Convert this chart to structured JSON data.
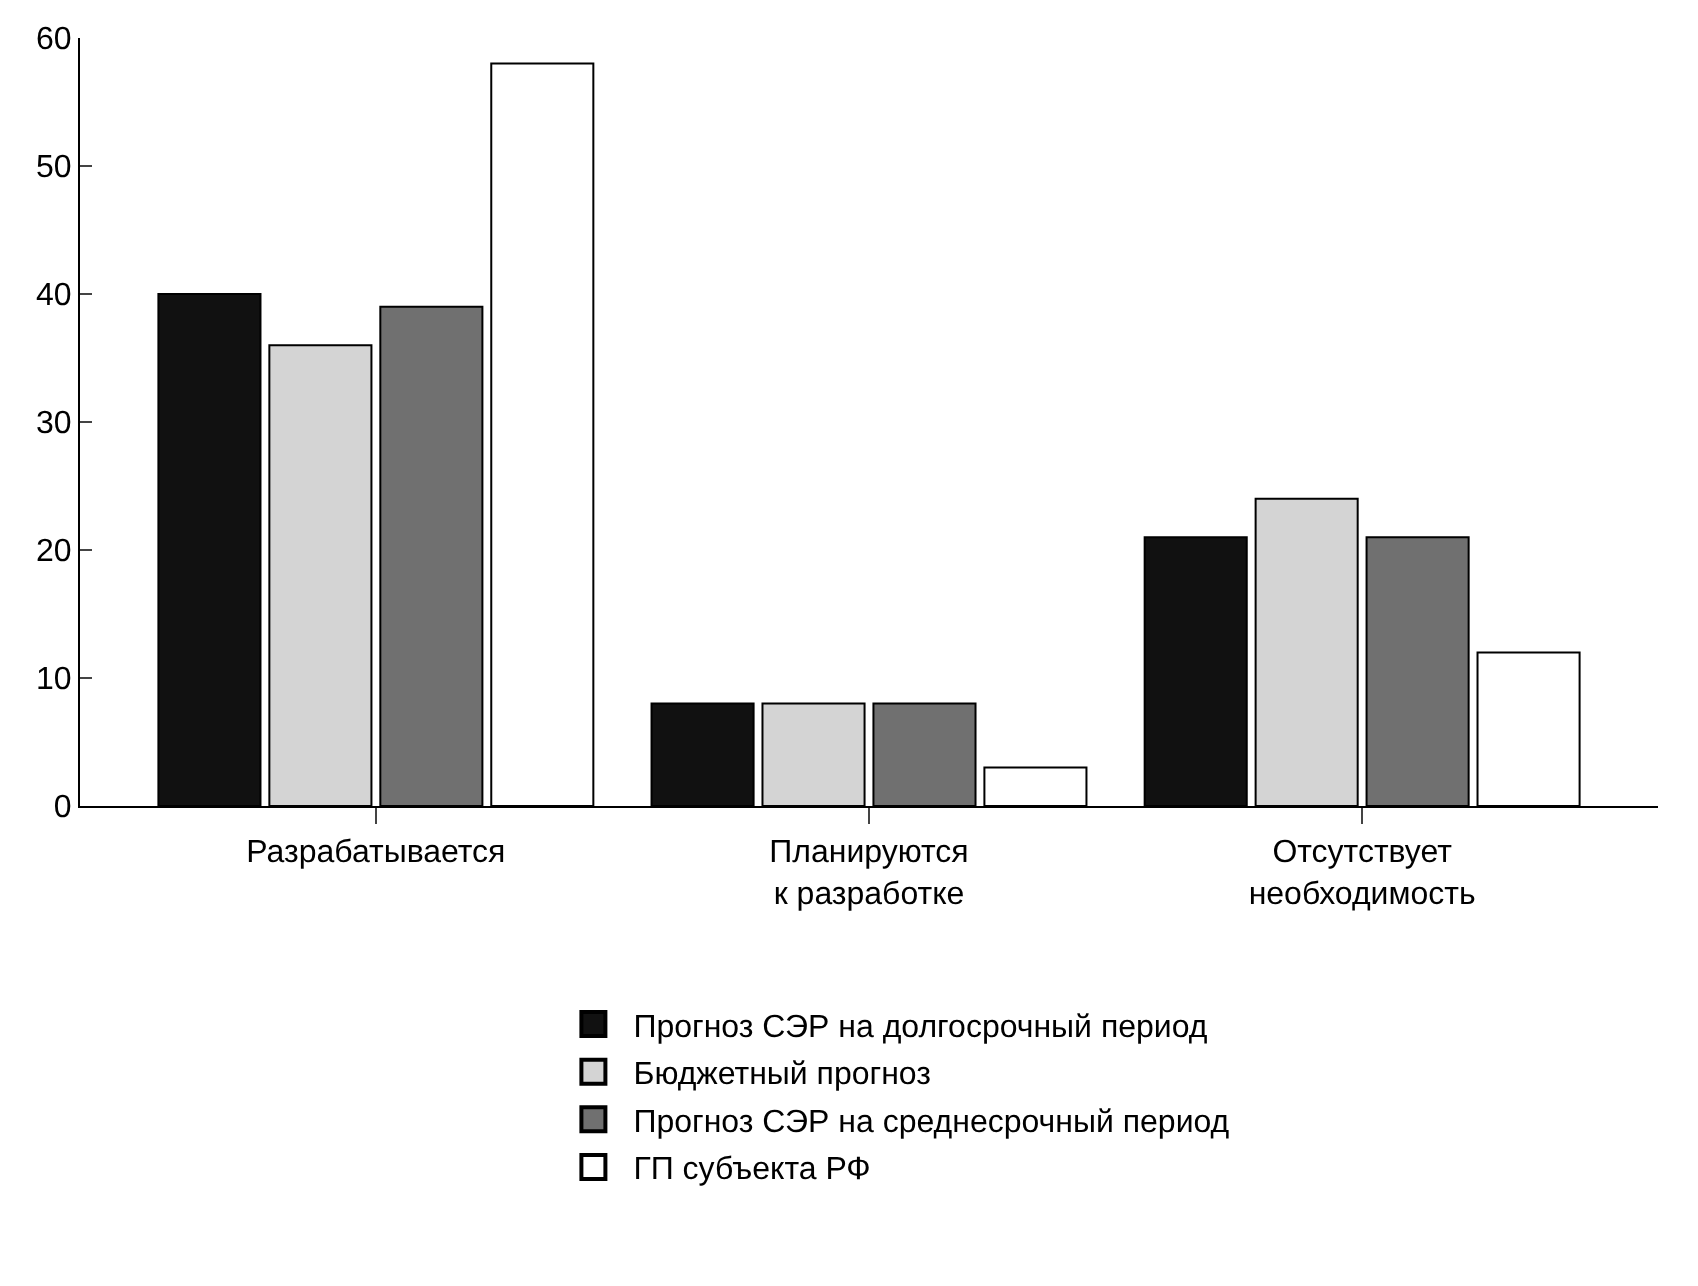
{
  "chart_data": {
    "type": "bar",
    "categories": [
      "Разрабатывается",
      "Планируются\nк разработке",
      "Отсутствует\nнеобходимость"
    ],
    "series": [
      {
        "name": "Прогноз СЭР на долгосрочный период",
        "color": "#111111",
        "values": [
          40,
          8,
          21
        ]
      },
      {
        "name": "Бюджетный прогноз",
        "color": "#d4d4d4",
        "values": [
          36,
          8,
          24
        ]
      },
      {
        "name": "Прогноз СЭР на среднесрочный период",
        "color": "#707070",
        "values": [
          39,
          8,
          21
        ]
      },
      {
        "name": "ГП субъекта РФ",
        "color": "#ffffff",
        "values": [
          58,
          3,
          12
        ]
      }
    ],
    "ylim": [
      0,
      60
    ],
    "yticks": [
      0,
      10,
      20,
      30,
      40,
      50,
      60
    ],
    "legend": "bottom"
  }
}
